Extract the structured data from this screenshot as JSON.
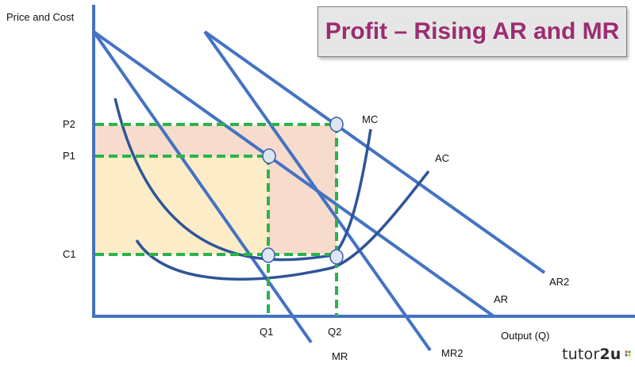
{
  "title": "Profit – Rising AR and MR",
  "axes": {
    "y_label": "Price and Cost",
    "x_label": "Output (Q)"
  },
  "price_labels": {
    "p2": "P2",
    "p1": "P1",
    "c1": "C1"
  },
  "quantity_labels": {
    "q1": "Q1",
    "q2": "Q2"
  },
  "curve_labels": {
    "mc": "MC",
    "ac": "AC",
    "ar": "AR",
    "ar2": "AR2",
    "mr": "MR",
    "mr2": "MR2"
  },
  "branding": {
    "name": "tutor",
    "suffix": "2u"
  },
  "colors": {
    "axis": "#4472c4",
    "curve_straight": "#4472c4",
    "curve_cost": "#2f5597",
    "guide": "#2bb34a",
    "profit_initial": "#fdecc8",
    "profit_extra": "#f7dccd",
    "marker_fill": "#dde6f2",
    "marker_stroke": "#3b5ea8",
    "title": "#9b2d6f"
  }
}
